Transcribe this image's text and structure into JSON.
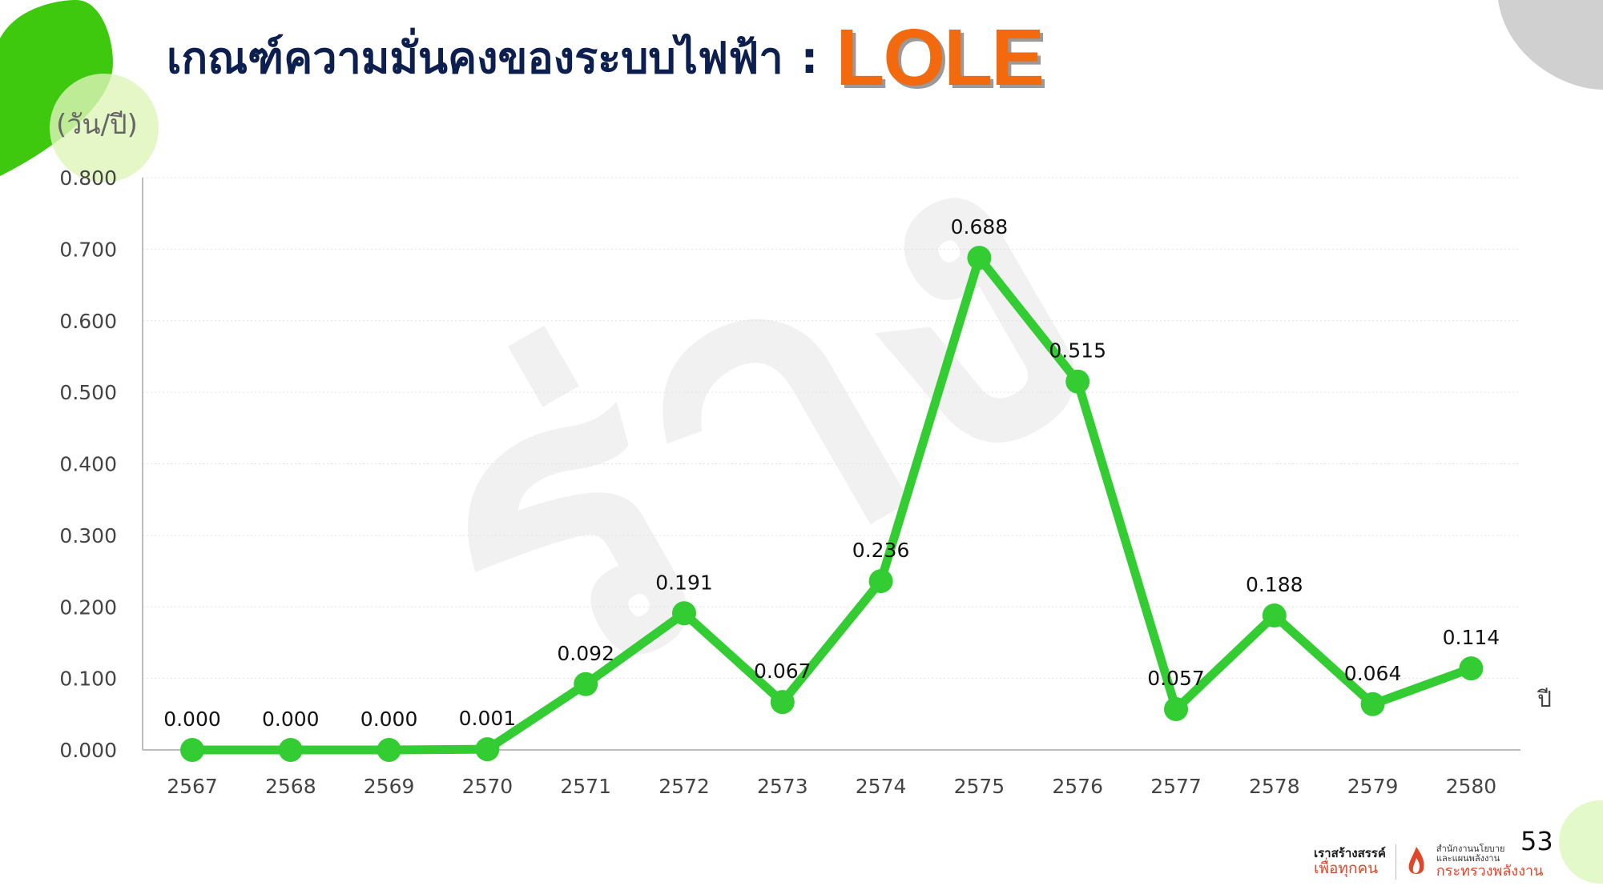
{
  "slide": {
    "title": "เกณฑ์ความมั่นคงของระบบไฟฟ้า",
    "title_separator": ":",
    "title_highlight": "LOLE",
    "watermark": "ร่าง",
    "page_number": "53",
    "colors": {
      "title": "#0c1f4f",
      "highlight": "#f26a0d",
      "line": "#33cc33",
      "deco_green": "#3ec90f",
      "deco_light_green": "#dff5b8",
      "deco_gray": "#d0d0d0"
    }
  },
  "logo": {
    "left_line1": "เราสร้างสรรค์",
    "left_line2": "เพื่อทุกคน",
    "right_line1": "สำนักงานนโยบาย",
    "right_line1b": "และแผนพลังงาน",
    "right_line2": "กระทรวงพลังงาน"
  },
  "chart_data": {
    "type": "line",
    "title": "",
    "ylabel": "(วัน/ปี)",
    "xlabel": "ปี",
    "categories": [
      "2567",
      "2568",
      "2569",
      "2570",
      "2571",
      "2572",
      "2573",
      "2574",
      "2575",
      "2576",
      "2577",
      "2578",
      "2579",
      "2580"
    ],
    "series": [
      {
        "values": [
          0.0,
          0.0,
          0.0,
          0.001,
          0.092,
          0.191,
          0.067,
          0.236,
          0.688,
          0.515,
          0.057,
          0.188,
          0.064,
          0.114
        ],
        "labels": [
          "0.000",
          "0.000",
          "0.000",
          "0.001",
          "0.092",
          "0.191",
          "0.067",
          "0.236",
          "0.688",
          "0.515",
          "0.057",
          "0.188",
          "0.064",
          "0.114"
        ],
        "color": "#33cc33"
      }
    ],
    "ylim": [
      0,
      0.8
    ],
    "yticks": [
      "0.000",
      "0.100",
      "0.200",
      "0.300",
      "0.400",
      "0.500",
      "0.600",
      "0.700",
      "0.800"
    ],
    "grid": true,
    "legend": "none"
  }
}
